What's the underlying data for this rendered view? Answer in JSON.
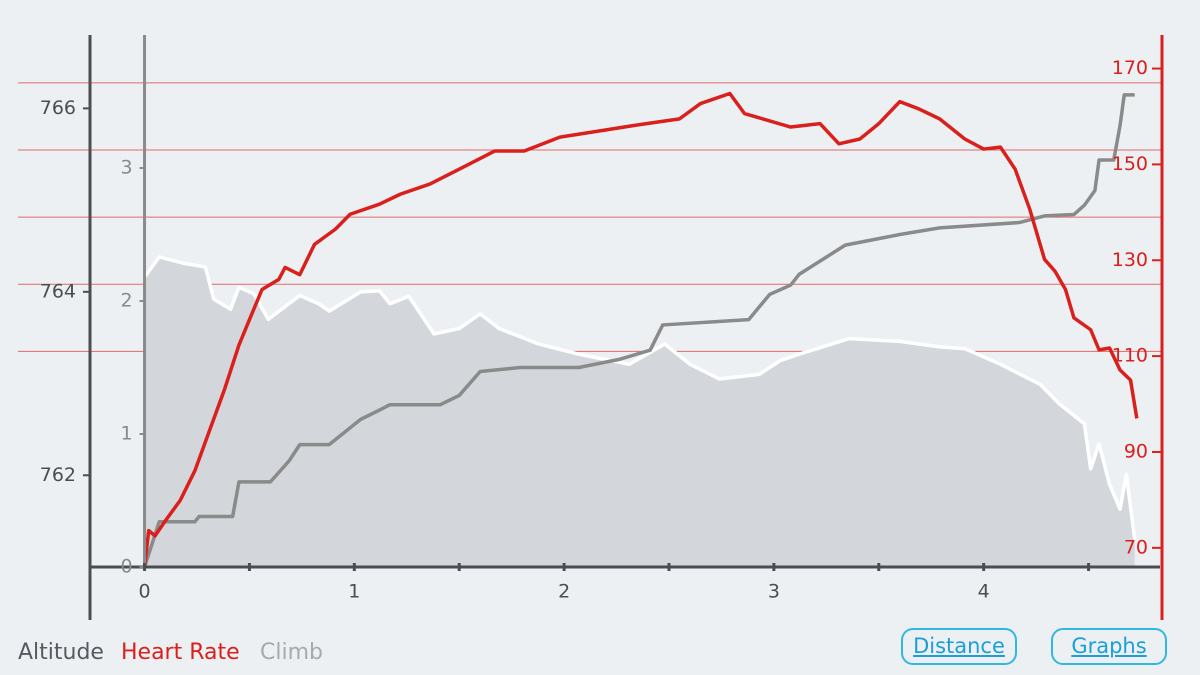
{
  "chart_data": {
    "type": "line",
    "xlim": [
      -0.26,
      4.85
    ],
    "xticks": [
      0,
      1,
      2,
      3,
      4
    ],
    "xminor": [
      0.5,
      1.5,
      2.5,
      3.5,
      4.5
    ],
    "ylim": [
      761,
      766.8
    ],
    "yticks": [
      762,
      764,
      766
    ],
    "y2lim": [
      66,
      177
    ],
    "y2ticks": [
      70,
      90,
      110,
      130,
      150,
      170
    ],
    "y2grid": [
      167,
      153,
      139,
      125,
      111
    ],
    "y2grid_color": "#e06a6a",
    "y3lim": [
      0,
      4
    ],
    "y3ticks": [
      0,
      1,
      2,
      3
    ],
    "series": [
      {
        "name": "Altitude",
        "color": "#ffffff",
        "fill": "#d3d6db",
        "legend_color": "#555a60",
        "axis": "y",
        "x": [
          0,
          0.07,
          0.19,
          0.29,
          0.33,
          0.41,
          0.45,
          0.52,
          0.59,
          0.74,
          0.83,
          0.88,
          1.03,
          1.12,
          1.17,
          1.26,
          1.38,
          1.5,
          1.6,
          1.69,
          1.88,
          2.07,
          2.31,
          2.48,
          2.6,
          2.74,
          2.93,
          3.03,
          3.12,
          3.36,
          3.6,
          3.79,
          3.91,
          4.08,
          4.27,
          4.36,
          4.48,
          4.51,
          4.55,
          4.6,
          4.65,
          4.68,
          4.72
        ],
        "values": [
          764.16,
          764.38,
          764.31,
          764.27,
          763.92,
          763.81,
          764.05,
          763.98,
          763.7,
          763.96,
          763.87,
          763.79,
          764.0,
          764.01,
          763.87,
          763.95,
          763.54,
          763.6,
          763.76,
          763.6,
          763.43,
          763.32,
          763.21,
          763.43,
          763.21,
          763.05,
          763.1,
          763.25,
          763.32,
          763.49,
          763.46,
          763.4,
          763.38,
          763.21,
          762.99,
          762.78,
          762.56,
          762.07,
          762.34,
          761.9,
          761.63,
          762.01,
          761.3
        ]
      },
      {
        "name": "Heart Rate",
        "color": "#d9201c",
        "legend_color": "#d9201c",
        "axis": "y2",
        "x": [
          0,
          0.02,
          0.05,
          0.1,
          0.17,
          0.24,
          0.31,
          0.38,
          0.45,
          0.5,
          0.56,
          0.64,
          0.67,
          0.74,
          0.81,
          0.91,
          0.98,
          1.12,
          1.22,
          1.36,
          1.5,
          1.67,
          1.81,
          1.98,
          2.17,
          2.36,
          2.55,
          2.65,
          2.79,
          2.86,
          3.08,
          3.22,
          3.31,
          3.41,
          3.5,
          3.6,
          3.69,
          3.79,
          3.91,
          4.0,
          4.08,
          4.15,
          4.22,
          4.29,
          4.34,
          4.39,
          4.43,
          4.51,
          4.55,
          4.6,
          4.65,
          4.7,
          4.73
        ],
        "values": [
          66.2,
          73.6,
          72.5,
          75.7,
          79.9,
          86.1,
          94.5,
          102.9,
          112.3,
          117.6,
          123.9,
          126.0,
          128.5,
          127.0,
          133.3,
          136.5,
          139.6,
          141.7,
          143.8,
          145.9,
          149.0,
          152.8,
          152.8,
          155.7,
          157.0,
          158.3,
          159.5,
          162.7,
          164.8,
          160.6,
          157.8,
          158.5,
          154.3,
          155.3,
          158.5,
          163.1,
          161.6,
          159.5,
          155.3,
          153.2,
          153.6,
          149.0,
          140.6,
          130.2,
          127.7,
          123.9,
          118.0,
          115.5,
          111.3,
          111.7,
          107.1,
          105.0,
          97.0
        ]
      },
      {
        "name": "Climb",
        "color": "#8a8a8a",
        "legend_color": "#a7a9ac",
        "axis": "y3",
        "x": [
          0,
          0.07,
          0.24,
          0.26,
          0.42,
          0.45,
          0.6,
          0.69,
          0.74,
          0.88,
          1.03,
          1.12,
          1.17,
          1.41,
          1.5,
          1.6,
          1.79,
          2.07,
          2.26,
          2.41,
          2.47,
          2.88,
          2.98,
          3.08,
          3.12,
          3.34,
          3.6,
          3.79,
          4.17,
          4.29,
          4.43,
          4.48,
          4.53,
          4.55,
          4.62,
          4.65,
          4.67,
          4.72
        ],
        "values": [
          0.0,
          0.34,
          0.34,
          0.38,
          0.38,
          0.64,
          0.64,
          0.8,
          0.92,
          0.92,
          1.11,
          1.18,
          1.22,
          1.22,
          1.29,
          1.47,
          1.5,
          1.5,
          1.56,
          1.63,
          1.82,
          1.86,
          2.05,
          2.12,
          2.2,
          2.42,
          2.5,
          2.55,
          2.59,
          2.64,
          2.65,
          2.72,
          2.83,
          3.06,
          3.06,
          3.32,
          3.55,
          3.55
        ]
      }
    ]
  },
  "buttons": [
    "Distance",
    "Graphs"
  ]
}
